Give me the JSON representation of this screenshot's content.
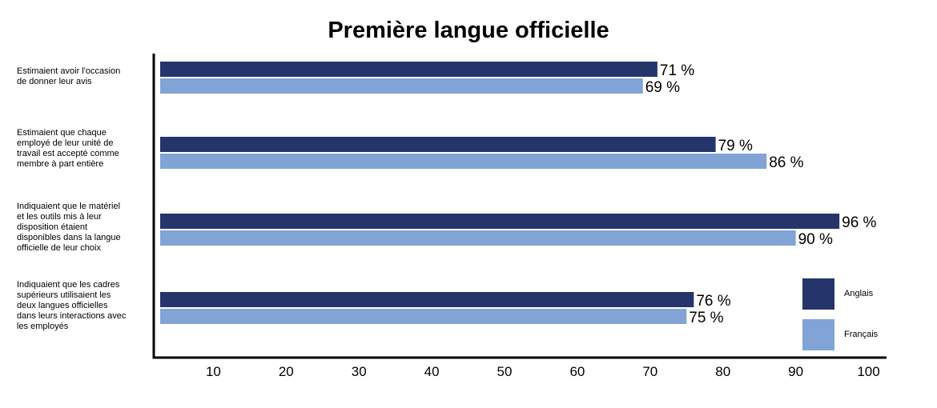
{
  "chart_data": {
    "type": "bar",
    "orientation": "horizontal",
    "title": "Première langue officielle",
    "xlabel": "",
    "ylabel": "",
    "xlim": [
      0,
      100
    ],
    "ticks": [
      10,
      20,
      30,
      40,
      50,
      60,
      70,
      80,
      90,
      100
    ],
    "categories": [
      "Estimaient avoir l'occasion de donner leur avis",
      "Estimaient que chaque employé de leur unité de travail est accepté comme membre à part entière",
      "Indiquaient que le matériel et les outils mis à leur disposition étaient disponibles dans la langue officielle de leur choix",
      "Indiquaient que les cadres supérieurs utilisaient les deux langues officielles dans leurs interactions avec les employés"
    ],
    "category_lines": [
      [
        "Estimaient avoir l'occasion",
        "de donner leur avis"
      ],
      [
        "Estimaient que chaque",
        "employé de leur unité de",
        "travail est accepté comme",
        "membre à part entière"
      ],
      [
        "Indiquaient que le matériel",
        "et les outils mis à leur",
        "disposition étaient",
        "disponibles dans la langue",
        "officielle de leur choix"
      ],
      [
        "Indiquaient que les cadres",
        "supérieurs utilisaient les",
        "deux langues officielles",
        "dans leurs interactions avec",
        "les employés"
      ]
    ],
    "series": [
      {
        "name": "Anglais",
        "color": "#25346b",
        "values": [
          71,
          79,
          96,
          76
        ],
        "labels": [
          "71 %",
          "79 %",
          "96 %",
          "76 %"
        ]
      },
      {
        "name": "Français",
        "color": "#82a3d5",
        "values": [
          69,
          86,
          90,
          75
        ],
        "labels": [
          "69 %",
          "86 %",
          "90 %",
          "75 %"
        ]
      }
    ],
    "grid": false,
    "legend": "bottom-right"
  }
}
